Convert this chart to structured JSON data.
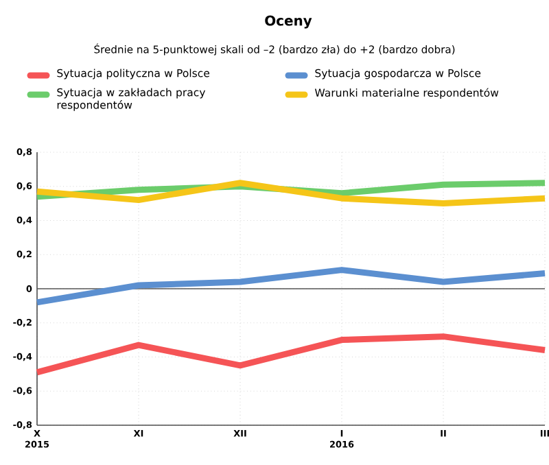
{
  "chart_data": {
    "type": "line",
    "title": "Oceny",
    "subtitle": "Średnie na 5-punktowej skali od –2 (bardzo zła) do +2 (bardzo dobra)",
    "categories": [
      "X 2015",
      "XI",
      "XII",
      "I 2016",
      "II",
      "III"
    ],
    "series": [
      {
        "name": "Sytuacja polityczna w Polsce",
        "color": "#f55456",
        "values": [
          -0.49,
          -0.33,
          -0.45,
          -0.3,
          -0.28,
          -0.36
        ]
      },
      {
        "name": "Sytuacja gospodarcza w Polsce",
        "color": "#5b8fd0",
        "values": [
          -0.08,
          0.02,
          0.04,
          0.11,
          0.04,
          0.09
        ]
      },
      {
        "name": "Sytuacja w zakładach pracy respondentów",
        "color": "#6bcc6b",
        "values": [
          0.54,
          0.58,
          0.6,
          0.56,
          0.61,
          0.62
        ]
      },
      {
        "name": "Warunki materialne respondentów",
        "color": "#f5c518",
        "values": [
          0.57,
          0.52,
          0.62,
          0.53,
          0.5,
          0.53
        ]
      }
    ],
    "ylim": [
      -0.8,
      0.8
    ],
    "yticks": [
      {
        "value": -0.8,
        "label": "-0,8"
      },
      {
        "value": -0.6,
        "label": "-0,6"
      },
      {
        "value": -0.4,
        "label": "-0,4"
      },
      {
        "value": -0.2,
        "label": "-0,2"
      },
      {
        "value": 0,
        "label": "0"
      },
      {
        "value": 0.2,
        "label": "0,2"
      },
      {
        "value": 0.4,
        "label": "0,4"
      },
      {
        "value": 0.6,
        "label": "0,6"
      },
      {
        "value": 0.8,
        "label": "0,8"
      }
    ],
    "ref_lines": [
      {
        "axis": "y",
        "value": 0,
        "color": "#555555"
      }
    ],
    "grid": true,
    "legend": "top",
    "marker": "none",
    "line_style": "solid"
  }
}
